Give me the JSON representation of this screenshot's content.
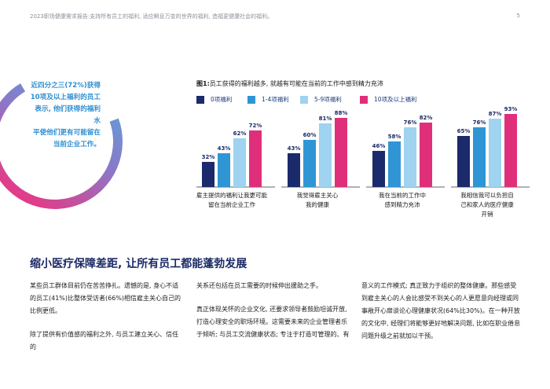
{
  "header": {
    "text": "2023职场健康需求报告:支持所有员工的福利, 适应瞬息万变的世界的福利, 造福更健康社会的福利。",
    "page_number": "5"
  },
  "callout": {
    "lines": [
      "近四分之三(72%)获得",
      "10项及以上福利的员工",
      "表示, 他们获得的福利水",
      "平使他们更有可能留在",
      "当前企业工作。"
    ],
    "percent": 72
  },
  "figure": {
    "label": "图1:",
    "title": "员工获得的福利越多, 就越有可能在当前的工作中感到精力充沛"
  },
  "colors": {
    "navy": "#1b2a6b",
    "blue": "#2f95d4",
    "light": "#9fd3ef",
    "pink": "#e02f7a"
  },
  "chart_data": {
    "type": "bar",
    "categories": [
      [
        "雇主提供的福利让我更可能",
        "留在当前企业工作"
      ],
      [
        "我觉得雇主关心",
        "我的健康"
      ],
      [
        "我在当前的工作中",
        "感到精力充沛"
      ],
      [
        "我相信我可以负担自",
        "己和家人的医疗健康",
        "开销"
      ]
    ],
    "series": [
      {
        "name": "0项福利",
        "color": "#1b2a6b",
        "values": [
          32,
          43,
          46,
          65
        ]
      },
      {
        "name": "1-4项福利",
        "color": "#2f95d4",
        "values": [
          43,
          60,
          58,
          76
        ]
      },
      {
        "name": "5-9项福利",
        "color": "#9fd3ef",
        "values": [
          62,
          81,
          76,
          87
        ]
      },
      {
        "name": "10项及以上福利",
        "color": "#e02f7a",
        "values": [
          72,
          88,
          82,
          93
        ]
      }
    ],
    "value_suffix": "%",
    "ylim": [
      0,
      100
    ],
    "legend": "top"
  },
  "section": {
    "title": "缩小医疗保障差距, 让所有员工都能蓬勃发展"
  },
  "columns": [
    [
      "某些员工群体目前仍在苦苦挣扎。遗憾的是, 身心不适的员工(41%)比整体受访者(66%)相信雇主关心自己的比例更低。",
      "除了提供有价值感的福利之外, 与员工建立关心、信任的"
    ],
    [
      "关系还包括在员工需要的时候伸出援助之手。",
      "真正体现关怀的企业文化, 还要求领导者鼓励坦诚开放, 打造心理安全的职场环境。这需要未来的企业管理者乐于倾听; 与员工交流健康状态; 专注于打造可管理的、有"
    ],
    [
      "意义的工作模式; 真正致力于组织的整体健康。那些感受到雇主关心的人会比感受不到关心的人更愿意向经理或同事敞开心扉谈论心理健康状况(64%比30%)。在一种开放的文化中, 经理们将能够更好地解决问题, 比如在职业倦怠问题升级之前就加以干预。"
    ]
  ]
}
